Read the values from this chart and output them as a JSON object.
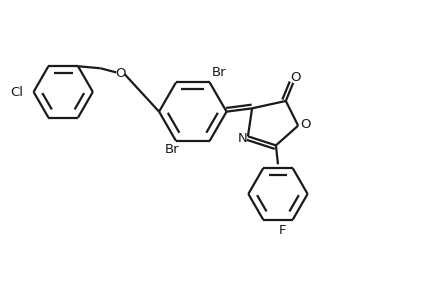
{
  "line_color": "#1a1a1a",
  "bg_color": "#ffffff",
  "line_width": 1.6,
  "font_size": 9.5,
  "figsize": [
    4.35,
    2.99
  ],
  "dpi": 100,
  "xlim": [
    0,
    10.5
  ],
  "ylim": [
    0,
    7.2
  ]
}
